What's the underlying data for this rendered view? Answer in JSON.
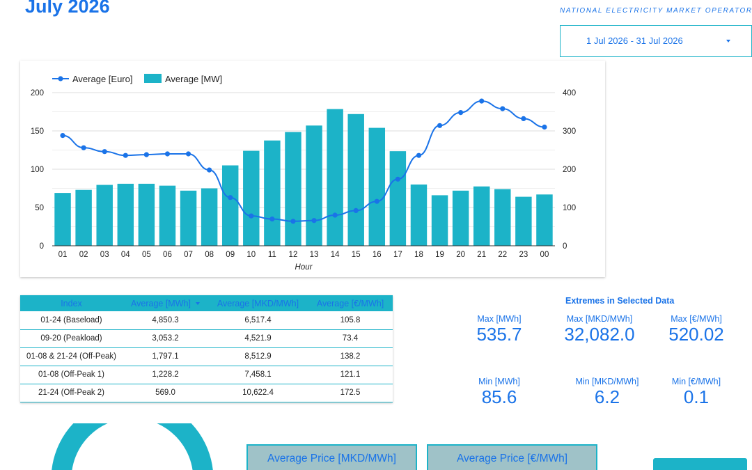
{
  "header": {
    "title": "July 2026",
    "logo_tagline": "NATIONAL ELECTRICITY MARKET OPERATOR"
  },
  "date_range": {
    "label": "1 Jul 2026 - 31 Jul 2026"
  },
  "colors": {
    "accent": "#1a73e8",
    "teal": "#1cb3c8",
    "kpi_bg": "#9fc2c8"
  },
  "chart_data": {
    "type": "bar",
    "xlabel": "Hour",
    "categories": [
      "01",
      "02",
      "03",
      "04",
      "05",
      "06",
      "07",
      "08",
      "09",
      "10",
      "11",
      "12",
      "13",
      "14",
      "15",
      "16",
      "17",
      "18",
      "19",
      "20",
      "21",
      "22",
      "23",
      "00"
    ],
    "y_left": {
      "ticks": [
        "0",
        "50",
        "100",
        "150",
        "200"
      ],
      "ylim": [
        0,
        200
      ]
    },
    "y_right": {
      "ticks": [
        "0",
        "100",
        "200",
        "300",
        "400"
      ],
      "ylim": [
        0,
        400
      ]
    },
    "series": [
      {
        "name": "Average [Euro]",
        "type": "line",
        "axis": "left",
        "values": [
          144,
          128,
          123,
          118,
          119,
          120,
          120,
          99,
          63,
          39,
          35,
          32,
          33,
          40,
          46,
          58,
          87,
          118,
          157,
          174,
          189,
          179,
          166,
          155
        ]
      },
      {
        "name": "Average [MW]",
        "type": "bar",
        "axis": "right",
        "values": [
          138,
          146,
          159,
          162,
          162,
          157,
          144,
          150,
          210,
          248,
          275,
          297,
          314,
          357,
          344,
          308,
          247,
          160,
          132,
          144,
          155,
          148,
          128,
          134
        ]
      }
    ],
    "legend_position": "top-left",
    "grid": true
  },
  "table": {
    "columns": [
      "Index",
      "Average [MWh]",
      "Average [MKD/MWh]",
      "Average [€/MWh]"
    ],
    "rows": [
      [
        "01-24 (Baseload)",
        "4,850.3",
        "6,517.4",
        "105.8"
      ],
      [
        "09-20 (Peakload)",
        "3,053.2",
        "4,521.9",
        "73.4"
      ],
      [
        "01-08 & 21-24 (Off-Peak)",
        "1,797.1",
        "8,512.9",
        "138.2"
      ],
      [
        "01-08 (Off-Peak 1)",
        "1,228.2",
        "7,458.1",
        "121.1"
      ],
      [
        "21-24 (Off-Peak 2)",
        "569.0",
        "10,622.4",
        "172.5"
      ]
    ]
  },
  "extremes": {
    "title": "Extremes in Selected Data",
    "max": [
      {
        "label": "Max [MWh]",
        "value": "535.7"
      },
      {
        "label": "Max [MKD/MWh]",
        "value": "32,082.0"
      },
      {
        "label": "Max [€/MWh]",
        "value": "520.02"
      }
    ],
    "min": [
      {
        "label": "Min [MWh]",
        "value": "85.6"
      },
      {
        "label": "Min [MKD/MWh]",
        "value": "6.2"
      },
      {
        "label": "Min [€/MWh]",
        "value": "0.1"
      }
    ]
  },
  "kpis": [
    {
      "label": "Average Price [MKD/MWh]"
    },
    {
      "label": "Average Price [€/MWh]"
    }
  ]
}
